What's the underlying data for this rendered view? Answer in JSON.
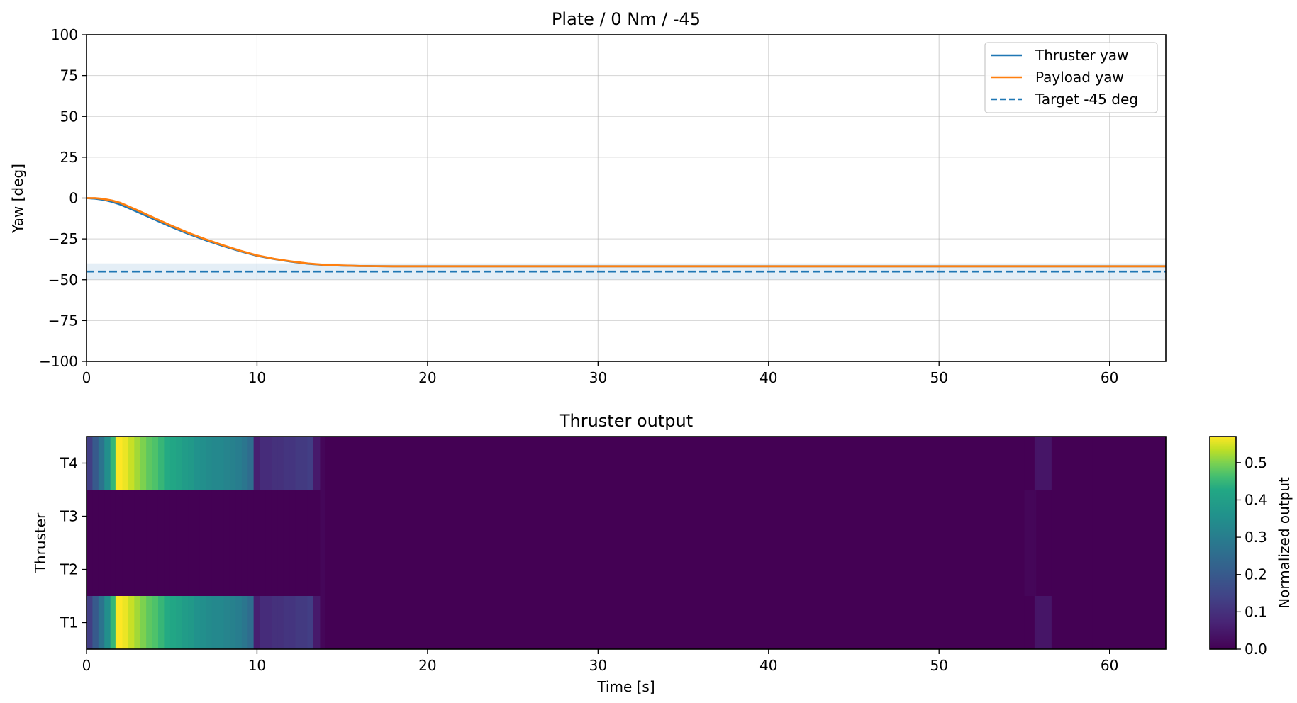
{
  "chart_data": [
    {
      "type": "line",
      "title": "Plate / 0 Nm / -45",
      "xlabel": "",
      "ylabel": "Yaw [deg]",
      "xlim": [
        0,
        63.3
      ],
      "ylim": [
        -100,
        100
      ],
      "xticks": [
        0,
        10,
        20,
        30,
        40,
        50,
        60
      ],
      "yticks": [
        100,
        75,
        50,
        25,
        0,
        -25,
        -50,
        -75,
        -100
      ],
      "ytick_labels": [
        "100",
        "75",
        "50",
        "25",
        "0",
        "−25",
        "−50",
        "−75",
        "−100"
      ],
      "grid": true,
      "legend_position": "upper right",
      "tolerance_band": [
        -50,
        -40
      ],
      "series": [
        {
          "name": "Thruster yaw",
          "color": "#1f77b4",
          "style": "solid",
          "x": [
            0,
            0.5,
            1,
            1.5,
            2,
            3,
            4,
            5,
            6,
            7,
            8,
            9,
            10,
            11,
            12,
            13,
            14,
            15,
            16,
            17,
            18,
            20,
            25,
            30,
            40,
            50,
            60,
            63.3
          ],
          "y": [
            0,
            -0.3,
            -1,
            -2.3,
            -4,
            -8.5,
            -13.2,
            -17.8,
            -22,
            -25.8,
            -29.3,
            -32.5,
            -35.3,
            -37.3,
            -38.9,
            -40.2,
            -41,
            -41.4,
            -41.6,
            -41.7,
            -41.8,
            -41.8,
            -41.8,
            -41.8,
            -41.8,
            -41.8,
            -41.8,
            -41.8
          ]
        },
        {
          "name": "Payload yaw",
          "color": "#ff7f0e",
          "style": "solid",
          "x": [
            0,
            0.5,
            1,
            1.5,
            2,
            3,
            4,
            5,
            6,
            7,
            8,
            9,
            10,
            11,
            12,
            13,
            14,
            15,
            16,
            17,
            18,
            20,
            25,
            30,
            40,
            50,
            60,
            63.3
          ],
          "y": [
            0,
            0,
            -0.5,
            -1.5,
            -3,
            -7.5,
            -12.3,
            -17,
            -21.4,
            -25.3,
            -28.9,
            -32.2,
            -35.1,
            -37.2,
            -38.8,
            -40.1,
            -40.9,
            -41.3,
            -41.6,
            -41.7,
            -41.8,
            -41.8,
            -41.8,
            -41.8,
            -41.8,
            -41.8,
            -41.8,
            -41.8
          ]
        },
        {
          "name": "Target -45 deg",
          "color": "#1f77b4",
          "style": "dashed",
          "x": [
            0,
            63.3
          ],
          "y": [
            -45,
            -45
          ]
        }
      ]
    },
    {
      "type": "heatmap",
      "title": "Thruster output",
      "xlabel": "Time [s]",
      "ylabel": "Thruster",
      "xlim": [
        0,
        63.3
      ],
      "xticks": [
        0,
        10,
        20,
        30,
        40,
        50,
        60
      ],
      "rows": [
        "T4",
        "T3",
        "T2",
        "T1"
      ],
      "colormap": "viridis",
      "colorbar": {
        "label": "Normalized output",
        "min": 0,
        "max": 0.57,
        "ticks": [
          0.0,
          0.1,
          0.2,
          0.3,
          0.4,
          0.5
        ],
        "tick_labels": [
          "0.0",
          "0.1",
          "0.2",
          "0.3",
          "0.4",
          "0.5"
        ]
      },
      "bin_edges": [
        0,
        0.35,
        0.7,
        1.05,
        1.4,
        1.7,
        2.1,
        2.45,
        2.8,
        3.15,
        3.5,
        3.85,
        4.2,
        4.55,
        4.9,
        5.25,
        5.6,
        5.95,
        6.3,
        6.65,
        7.0,
        7.35,
        7.7,
        8.05,
        8.4,
        8.75,
        9.1,
        9.45,
        9.8,
        10.15,
        10.5,
        10.85,
        11.2,
        11.55,
        11.9,
        12.25,
        12.6,
        12.95,
        13.3,
        13.7,
        14.0,
        55.0,
        55.6,
        55.7,
        56.6,
        58.9,
        59.0,
        63.3
      ],
      "values": [
        [
          0.13,
          0.2,
          0.27,
          0.35,
          0.45,
          0.57,
          0.56,
          0.54,
          0.52,
          0.5,
          0.48,
          0.47,
          0.45,
          0.43,
          0.42,
          0.41,
          0.39,
          0.38,
          0.36,
          0.35,
          0.34,
          0.33,
          0.33,
          0.32,
          0.31,
          0.3,
          0.28,
          0.25,
          0.06,
          0.09,
          0.09,
          0.1,
          0.1,
          0.11,
          0.11,
          0.12,
          0.12,
          0.13,
          0.05,
          0.01,
          0.0,
          0.0,
          0.04,
          0.04,
          0.0,
          0.0,
          0.0
        ],
        [
          0,
          0,
          0,
          0,
          0,
          0,
          0,
          0,
          0,
          0,
          0,
          0,
          0,
          0,
          0,
          0,
          0,
          0,
          0,
          0,
          0,
          0,
          0,
          0,
          0,
          0,
          0,
          0,
          0,
          0,
          0,
          0,
          0,
          0,
          0,
          0,
          0,
          0,
          0,
          0.01,
          0.0,
          0.01,
          0.01,
          0.0,
          0.0,
          0.0,
          0.0
        ],
        [
          0,
          0,
          0,
          0,
          0,
          0,
          0,
          0,
          0,
          0,
          0,
          0,
          0,
          0,
          0,
          0,
          0,
          0,
          0,
          0,
          0,
          0,
          0,
          0,
          0,
          0,
          0,
          0,
          0,
          0,
          0,
          0,
          0,
          0,
          0,
          0,
          0,
          0,
          0,
          0.01,
          0.0,
          0.01,
          0.01,
          0.0,
          0.0,
          0.0,
          0.0
        ],
        [
          0.13,
          0.2,
          0.27,
          0.35,
          0.45,
          0.57,
          0.56,
          0.54,
          0.52,
          0.5,
          0.48,
          0.47,
          0.45,
          0.43,
          0.42,
          0.41,
          0.39,
          0.38,
          0.36,
          0.35,
          0.34,
          0.33,
          0.33,
          0.32,
          0.31,
          0.3,
          0.28,
          0.25,
          0.06,
          0.09,
          0.09,
          0.1,
          0.1,
          0.11,
          0.11,
          0.12,
          0.12,
          0.13,
          0.05,
          0.01,
          0.0,
          0.0,
          0.04,
          0.04,
          0.0,
          0.0,
          0.0
        ]
      ]
    }
  ]
}
